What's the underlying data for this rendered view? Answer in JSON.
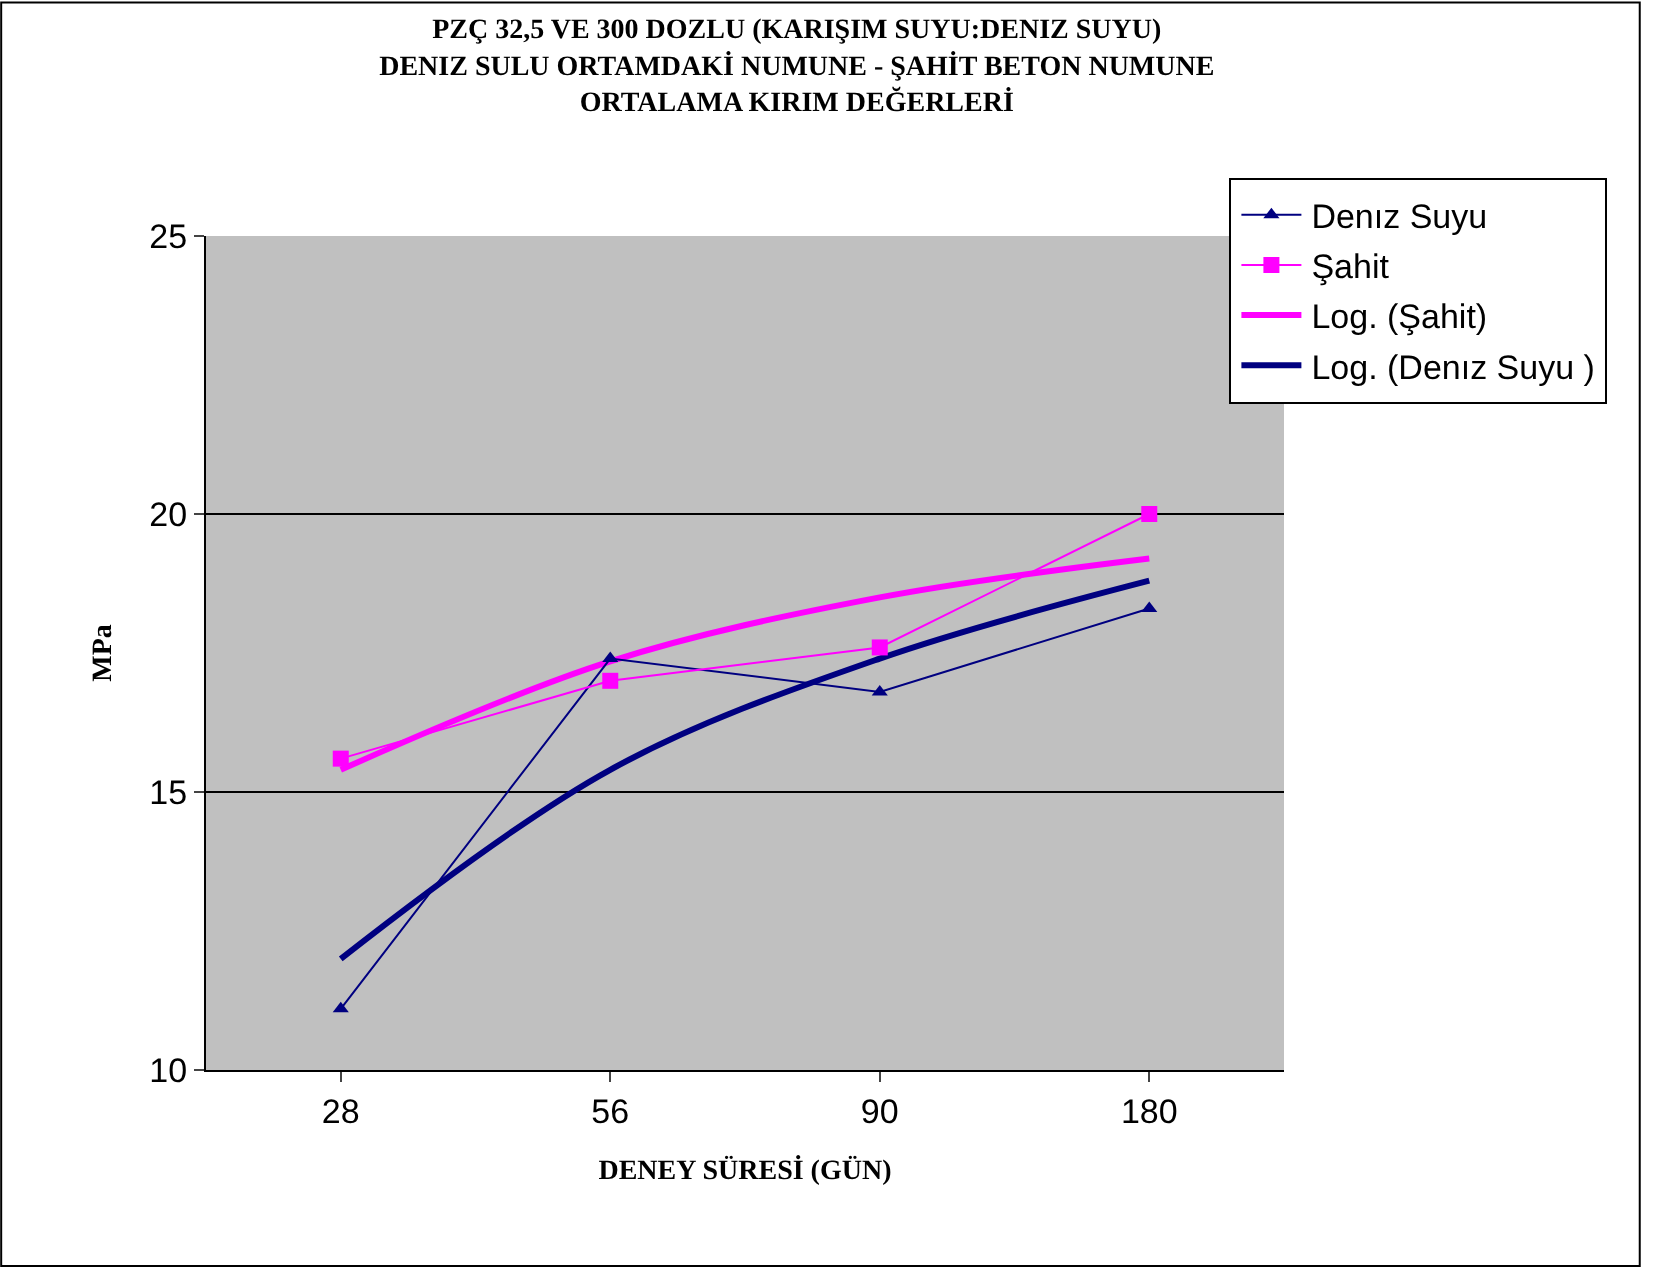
{
  "chart_data": {
    "type": "line",
    "title": "PZÇ 32,5 VE 300 DOZLU (KARIŞIM SUYU:DENIZ SUYU)\nDENIZ SULU ORTAMDAKİ NUMUNE - ŞAHİT BETON NUMUNE\nORTALAMA KIRIM DEĞERLERİ",
    "xlabel": "DENEY SÜRESİ (GÜN)",
    "ylabel": "MPa",
    "categories": [
      "28",
      "56",
      "90",
      "180"
    ],
    "series": [
      {
        "name": "Denız Suyu",
        "color": "#000080",
        "values": [
          11.1,
          17.4,
          16.8,
          18.3
        ],
        "marker": "triangle"
      },
      {
        "name": "Şahit",
        "color": "#ff00ff",
        "values": [
          15.6,
          17.0,
          17.6,
          20.0
        ],
        "marker": "square"
      },
      {
        "name": "Log. (Şahit)",
        "color": "#ff00ff",
        "values": [
          15.4,
          17.35,
          18.5,
          19.2
        ],
        "marker": "none"
      },
      {
        "name": "Log. (Denız Suyu )",
        "color": "#000080",
        "values": [
          12.0,
          15.4,
          17.4,
          18.8
        ],
        "marker": "none"
      }
    ],
    "ylim": [
      10,
      25
    ],
    "yticks": [
      10,
      15,
      20,
      25
    ],
    "grid": "y",
    "legend": "top right"
  }
}
